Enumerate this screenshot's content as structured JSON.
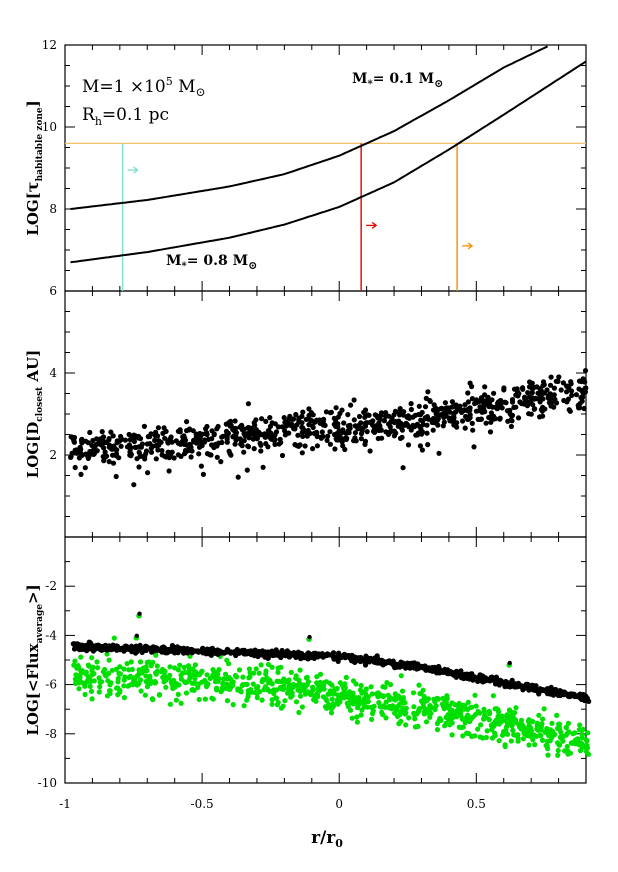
{
  "figure": {
    "xlabel": {
      "main": "r/r",
      "sub": "0"
    }
  },
  "chart_data": [
    {
      "type": "line",
      "panel": "top",
      "ylabel": {
        "pre": "LOG[",
        "tau": "τ",
        "sub": "habitable zone",
        "post": "]"
      },
      "xlim": [
        -1,
        0.9
      ],
      "ylim": [
        6,
        12
      ],
      "yticks": [
        6,
        8,
        10,
        12
      ],
      "series": [
        {
          "name": "M_* = 0.1 M_sun",
          "color": "#000000",
          "x": [
            -0.98,
            -0.7,
            -0.4,
            -0.2,
            0.0,
            0.2,
            0.4,
            0.6,
            0.77
          ],
          "y": [
            8.0,
            8.22,
            8.55,
            8.85,
            9.3,
            9.9,
            10.65,
            11.45,
            12.0
          ]
        },
        {
          "name": "M_* = 0.8 M_sun",
          "color": "#000000",
          "x": [
            -0.98,
            -0.7,
            -0.4,
            -0.2,
            0.0,
            0.2,
            0.4,
            0.6,
            0.9
          ],
          "y": [
            6.7,
            6.95,
            7.3,
            7.62,
            8.05,
            8.65,
            9.45,
            10.3,
            11.6
          ]
        }
      ],
      "hline": {
        "y": 9.6,
        "color": "#f5c06a"
      },
      "vlines": [
        {
          "x": -0.79,
          "color": "#7fe0d0",
          "arrow_y": 8.95
        },
        {
          "x": 0.08,
          "color": "#e00000",
          "arrow_y": 7.6
        },
        {
          "x": 0.43,
          "color": "#f09000",
          "arrow_y": 7.1
        }
      ],
      "annotations": {
        "mass_line": {
          "a": "M=1 ×10",
          "exp": "5",
          "b": " M",
          "sun": "⊙"
        },
        "radius_line": {
          "a": "R",
          "sub": "h",
          "b": "=0.1  pc"
        },
        "upper_curve": {
          "a": "M",
          "star": "*",
          "b": "= 0.1  M",
          "sun": "⊙"
        },
        "lower_curve": {
          "a": "M",
          "star": "*",
          "b": "= 0.8  M",
          "sun": "⊙"
        }
      }
    },
    {
      "type": "scatter",
      "panel": "middle",
      "ylabel": {
        "pre": "LOG[D",
        "sub": "closest",
        "post": " AU]"
      },
      "xlim": [
        -1,
        0.9
      ],
      "ylim": [
        0,
        6
      ],
      "yticks": [
        2,
        4
      ],
      "series": [
        {
          "name": "",
          "color": "#000000",
          "trend": {
            "x": [
              -1,
              -0.3,
              0.3,
              0.9
            ],
            "y": [
              2.1,
              2.5,
              2.85,
              3.6
            ]
          },
          "scatter_sd": 0.22
        }
      ]
    },
    {
      "type": "scatter",
      "panel": "bottom",
      "ylabel": {
        "pre": "LOG[<Flux",
        "sub": "average",
        "post": ">]"
      },
      "xlim": [
        -1,
        0.9
      ],
      "ylim": [
        -10,
        0
      ],
      "yticks": [
        -10,
        -8,
        -6,
        -4,
        -2
      ],
      "xticks": [
        -1,
        -0.5,
        0,
        0.5
      ],
      "xticklabels": [
        "-1",
        "-0.5",
        "0",
        "0.5"
      ],
      "series": [
        {
          "name": "",
          "color": "#000000",
          "trend": {
            "x": [
              -0.95,
              0.0,
              0.3,
              0.9
            ],
            "y": [
              -4.45,
              -4.85,
              -5.3,
              -6.55
            ]
          },
          "scatter_sd": 0.07
        },
        {
          "name": "",
          "color": "#00e000",
          "trend": {
            "x": [
              -0.95,
              -0.3,
              0.3,
              0.9
            ],
            "y": [
              -5.6,
              -6.0,
              -6.9,
              -8.3
            ]
          },
          "scatter_sd": 0.4
        }
      ],
      "outliers": [
        {
          "x": -0.73,
          "y": -3.2
        },
        {
          "x": -0.74,
          "y": -4.1
        },
        {
          "x": -0.11,
          "y": -4.15
        },
        {
          "x": 0.62,
          "y": -5.2
        }
      ]
    }
  ]
}
